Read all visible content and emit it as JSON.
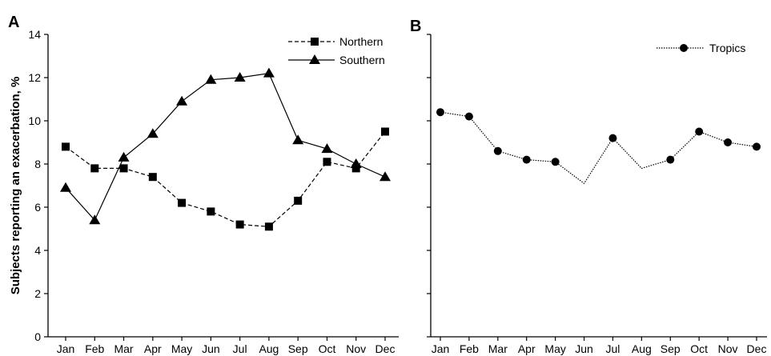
{
  "y_axis_label": "Subjects reporting an exacerbation, %",
  "chart_data": [
    {
      "panel": "A",
      "type": "line",
      "categories": [
        "Jan",
        "Feb",
        "Mar",
        "Apr",
        "May",
        "Jun",
        "Jul",
        "Aug",
        "Sep",
        "Oct",
        "Nov",
        "Dec"
      ],
      "ylim": [
        0,
        14
      ],
      "yticks": [
        0,
        2,
        4,
        6,
        8,
        10,
        12,
        14
      ],
      "ylabel": "Subjects reporting an exacerbation, %",
      "grid": false,
      "legend_position": "top-right",
      "series": [
        {
          "name": "Northern",
          "marker": "square",
          "line": "dashed",
          "color": "#000000",
          "values": [
            8.8,
            7.8,
            7.8,
            7.4,
            6.2,
            5.8,
            5.2,
            5.1,
            6.3,
            8.1,
            7.8,
            9.5
          ]
        },
        {
          "name": "Southern",
          "marker": "triangle",
          "line": "solid",
          "color": "#000000",
          "values": [
            6.9,
            5.4,
            8.3,
            9.4,
            10.9,
            11.9,
            12.0,
            12.2,
            9.1,
            8.7,
            8.0,
            7.4
          ]
        }
      ]
    },
    {
      "panel": "B",
      "type": "line",
      "categories": [
        "Jan",
        "Feb",
        "Mar",
        "Apr",
        "May",
        "Jun",
        "Jul",
        "Aug",
        "Sep",
        "Oct",
        "Nov",
        "Dec"
      ],
      "ylim": [
        0,
        14
      ],
      "yticks": [
        0,
        2,
        4,
        6,
        8,
        10,
        12,
        14
      ],
      "ylabel": "",
      "grid": false,
      "legend_position": "top-right",
      "series": [
        {
          "name": "Tropics",
          "marker": "circle",
          "line": "dotted",
          "color": "#000000",
          "values": [
            10.4,
            10.2,
            8.6,
            8.2,
            8.1,
            7.1,
            9.2,
            7.8,
            8.2,
            9.5,
            9.0,
            8.8
          ],
          "marker_mask": [
            true,
            true,
            true,
            true,
            true,
            false,
            true,
            false,
            true,
            true,
            true,
            true
          ]
        }
      ]
    }
  ]
}
